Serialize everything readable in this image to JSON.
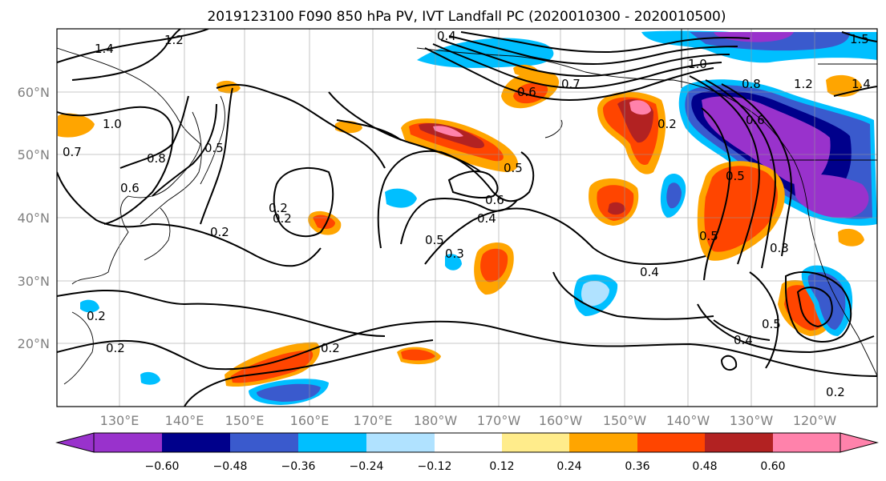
{
  "title": "2019123100 F090 850 hPa PV, IVT Landfall PC (2020010300 - 2020010500)",
  "lat_labels": [
    "60°N",
    "50°N",
    "40°N",
    "30°N",
    "20°N"
  ],
  "lon_labels": [
    "130°E",
    "140°E",
    "150°E",
    "160°E",
    "170°E",
    "180°W",
    "170°W",
    "160°W",
    "150°W",
    "140°W",
    "130°W",
    "120°W"
  ],
  "colorbar": {
    "colors": [
      "#9932cc",
      "#00008b",
      "#3a5acd",
      "#00bfff",
      "#b0e2ff",
      "#ffffff",
      "#ffffff",
      "#ffec8b",
      "#ffa500",
      "#ff4500",
      "#b22222",
      "#ff82ab"
    ],
    "under_color": "#9932cc",
    "over_color": "#ff82ab",
    "tick_labels": [
      "−0.60",
      "−0.48",
      "−0.36",
      "−0.24",
      "−0.12",
      "0.12",
      "0.24",
      "0.36",
      "0.48",
      "0.60"
    ]
  },
  "contour_labels": [
    "1.4",
    "1.2",
    "1.0",
    "0.7",
    "0.8",
    "0.5",
    "0.6",
    "0.4",
    "0.2",
    "0.2",
    "0.2",
    "0.2",
    "0.5",
    "0.6",
    "0.4",
    "0.5",
    "0.3",
    "0.6",
    "0.2",
    "0.2",
    "0.4",
    "0.7",
    "1.0",
    "1.2",
    "0.8",
    "0.6",
    "0.5",
    "0.3",
    "0.5",
    "0.4",
    "0.5",
    "0.2",
    "0.2",
    "1.4",
    "1.5"
  ]
}
